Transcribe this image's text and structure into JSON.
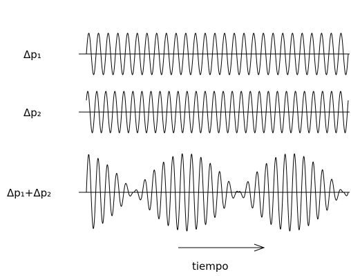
{
  "labels": {
    "wave1": "Δp₁",
    "wave2": "Δp₂",
    "sum": "Δp₁+Δp₂",
    "time_axis": "tiempo"
  },
  "colors": {
    "line": "#000000",
    "background": "#ffffff"
  },
  "waves": {
    "wave1": {
      "cycles": 27
    },
    "wave2": {
      "cycles": 29
    },
    "sum": {
      "beat_periods": 2.5
    }
  }
}
